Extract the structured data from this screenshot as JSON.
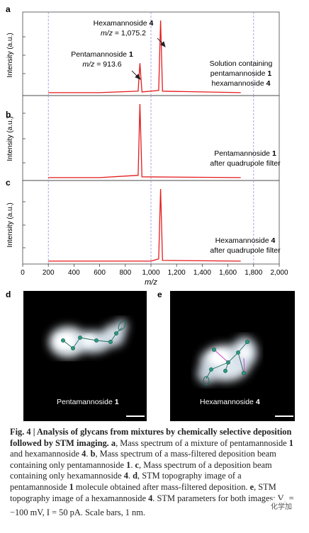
{
  "panels": {
    "a": {
      "letter": "a",
      "ylabel": "Intensity (a.u.)",
      "annot1_name": "Hexamannoside",
      "annot1_num": "4",
      "annot1_mz_prefix": "m/z",
      "annot1_mz_value": " = 1,075.2",
      "annot2_name": "Pentamannoside",
      "annot2_num": "1",
      "annot2_mz_prefix": "m/z",
      "annot2_mz_value": " = 913.6",
      "right_line1": "Solution containing",
      "right_line2": "pentamannoside",
      "right_line2_num": "1",
      "right_line3": "hexamannoside",
      "right_line3_num": "4"
    },
    "b": {
      "letter": "b",
      "ylabel": "Intensity (a.u.)",
      "right_line1": "Pentamannoside",
      "right_line1_num": "1",
      "right_line2": "after quadrupole filter"
    },
    "c": {
      "letter": "c",
      "ylabel": "Intensity (a.u.)",
      "right_line1": "Hexamannoside",
      "right_line1_num": "4",
      "right_line2": "after quadrupole filter"
    },
    "d": {
      "letter": "d",
      "label": "Pentamannoside",
      "label_num": "1"
    },
    "e": {
      "letter": "e",
      "label": "Hexamannoside",
      "label_num": "4"
    }
  },
  "chart_data": [
    {
      "type": "line",
      "panel": "a",
      "xlabel": "m/z",
      "xlim": [
        0,
        2000
      ],
      "series": [
        {
          "color": "#e41a1c",
          "x": [
            200,
            600,
            900,
            913.6,
            930,
            1060,
            1075.2,
            1090,
            1700
          ],
          "y": [
            0.02,
            0.02,
            0.04,
            0.42,
            0.03,
            0.05,
            1.0,
            0.04,
            0.02
          ]
        }
      ],
      "dashed_x": [
        200,
        1000,
        1800
      ]
    },
    {
      "type": "line",
      "panel": "b",
      "xlabel": "m/z",
      "xlim": [
        0,
        2000
      ],
      "series": [
        {
          "color": "#e41a1c",
          "x": [
            200,
            600,
            900,
            913.6,
            930,
            1700
          ],
          "y": [
            0.02,
            0.02,
            0.05,
            1.0,
            0.03,
            0.02
          ]
        }
      ],
      "dashed_x": [
        200,
        1000,
        1800
      ]
    },
    {
      "type": "line",
      "panel": "c",
      "xlabel": "m/z",
      "xlim": [
        0,
        2000
      ],
      "xticks": [
        "0",
        "200",
        "400",
        "600",
        "800",
        "1,000",
        "1,200",
        "1,400",
        "1,600",
        "1,800",
        "2,000"
      ],
      "series": [
        {
          "color": "#e41a1c",
          "x": [
            200,
            1000,
            1060,
            1075.2,
            1090,
            1700
          ],
          "y": [
            0.02,
            0.02,
            0.05,
            1.0,
            0.03,
            0.02
          ]
        }
      ],
      "dashed_x": [
        200,
        1000,
        1800
      ]
    }
  ],
  "caption": {
    "title": "Fig. 4 | Analysis of glycans from mixtures by chemically selective deposition followed by STM imaging.",
    "p1": " ",
    "a": "a",
    "t1": ", Mass spectrum of a mixture of pentamannoside ",
    "n1": "1",
    "t2": " and hexamannoside ",
    "n2": "4",
    "t3": ". ",
    "b": "b",
    "t4": ", Mass spectrum of a mass-filtered deposition beam containing only pentamannoside ",
    "n3": "1",
    "t5": ". ",
    "c": "c",
    "t6": ", Mass spectrum of a deposition beam containing only hexamannoside ",
    "n4": "4",
    "t7": ". ",
    "d": "d",
    "t8": ", STM topography image of a pentamannoside ",
    "n5": "1",
    "t9": " molecule obtained after mass-filtered deposition. ",
    "e": "e",
    "t10": ", STM topography image of a hexamannoside ",
    "n6": "4",
    "t11": ". STM parameters for both images: V",
    "sub": "s",
    "t12": " = −100 mV, I = 50 pA. Scale bars, 1 nm."
  },
  "watermark": "化学加"
}
